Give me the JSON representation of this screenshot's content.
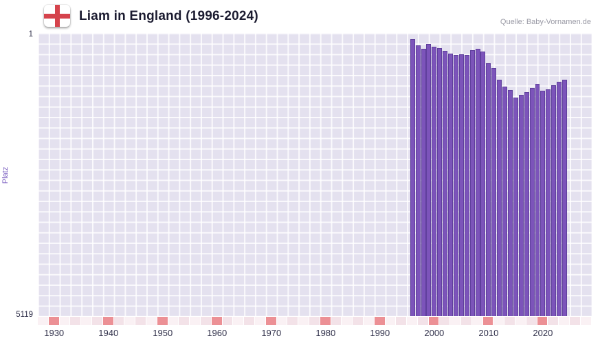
{
  "header": {
    "title": "Liam in England (1996-2024)",
    "source": "Quelle: Baby-Vornamen.de",
    "flag_icon": "england-flag-icon",
    "flag_cross_color": "#d5434c"
  },
  "chart_data": {
    "type": "bar",
    "title": "Liam in England (1996-2024)",
    "xlabel": "",
    "ylabel": "Platz",
    "x": [
      1996,
      1997,
      1998,
      1999,
      2000,
      2001,
      2002,
      2003,
      2004,
      2005,
      2006,
      2007,
      2008,
      2009,
      2010,
      2011,
      2012,
      2013,
      2014,
      2015,
      2016,
      2017,
      2018,
      2019,
      2020,
      2021,
      2022,
      2023,
      2024
    ],
    "values": [
      113,
      225,
      287,
      200,
      249,
      274,
      324,
      374,
      399,
      386,
      399,
      311,
      287,
      336,
      548,
      634,
      845,
      970,
      1032,
      1169,
      1119,
      1069,
      995,
      920,
      1044,
      1019,
      945,
      883,
      845
    ],
    "y_axis": {
      "min": 1,
      "max": 5119,
      "inverted": true,
      "top_label": "1",
      "bottom_label": "5119"
    },
    "x_axis": {
      "min": 1927,
      "max": 2029,
      "ticks": [
        1930,
        1940,
        1950,
        1960,
        1970,
        1980,
        1990,
        2000,
        2010,
        2020
      ]
    },
    "grid": true,
    "legend": false,
    "bar_color": "#7c54ba",
    "plot_background": "#e4e1ef",
    "strip_decade_color": "#ec9095",
    "strip_cell_colors": [
      "#faf1f4",
      "#f3e2e8"
    ]
  }
}
